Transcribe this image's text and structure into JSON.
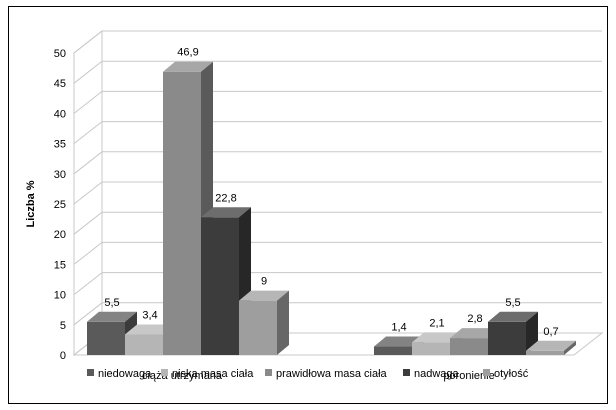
{
  "chart_data": {
    "type": "bar",
    "title": "",
    "xlabel": "",
    "ylabel": "Liczba %",
    "ylim": [
      0,
      50
    ],
    "y_ticks": [
      "0",
      "5",
      "10",
      "15",
      "20",
      "25",
      "30",
      "35",
      "40",
      "45",
      "50"
    ],
    "grid": true,
    "legend_position": "bottom",
    "categories": [
      "ciąża utrzymana",
      "poronienie"
    ],
    "series": [
      {
        "name": "niedowaga",
        "values": [
          5.5,
          1.4
        ],
        "labels": [
          "5,5",
          "1,4"
        ],
        "color": "#5a5a5a"
      },
      {
        "name": "niska masa ciała",
        "values": [
          3.4,
          2.1
        ],
        "labels": [
          "3,4",
          "2,1"
        ],
        "color": "#b5b5b5"
      },
      {
        "name": "prawidłowa masa ciała",
        "values": [
          46.9,
          2.8
        ],
        "labels": [
          "46,9",
          "2,8"
        ],
        "color": "#8a8a8a"
      },
      {
        "name": "nadwaga",
        "values": [
          22.8,
          5.5
        ],
        "labels": [
          "22,8",
          "5,5"
        ],
        "color": "#3c3c3c"
      },
      {
        "name": "otyłość",
        "values": [
          9,
          0.7
        ],
        "labels": [
          "9",
          "0,7"
        ],
        "color": "#9e9e9e"
      }
    ]
  }
}
